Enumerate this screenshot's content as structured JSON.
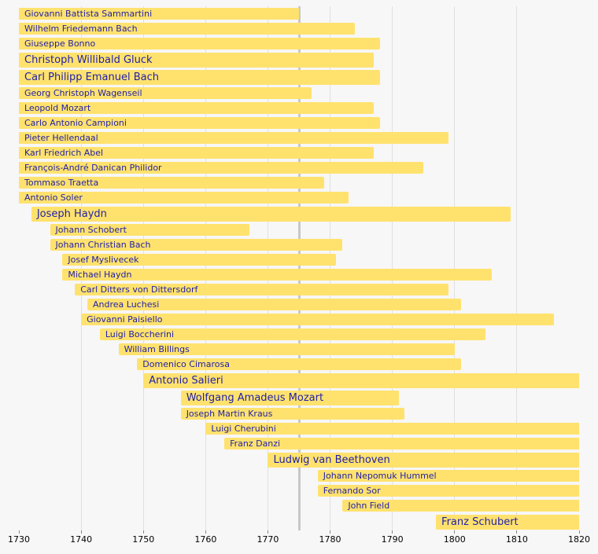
{
  "chart_data": {
    "type": "bar",
    "subtype": "horizontal-lifespan-timeline",
    "title": "",
    "x_axis": {
      "min": 1730,
      "max": 1820,
      "ticks": [
        1730,
        1740,
        1750,
        1760,
        1770,
        1780,
        1790,
        1800,
        1810,
        1820
      ]
    },
    "reference_line_year": 1775,
    "grid": true,
    "colors": {
      "background": "#f7f7f7",
      "bar": "#ffe26e",
      "label": "#1f1fa8",
      "grid": "#e0e0e0",
      "grid_major": "#c8c8c8",
      "axis_text": "#000000"
    },
    "composers": [
      {
        "name": "Giovanni Battista Sammartini",
        "start": 1730,
        "end": 1775,
        "clipped_start": true,
        "clipped_end": false,
        "emphasis": false
      },
      {
        "name": "Wilhelm Friedemann Bach",
        "start": 1730,
        "end": 1784,
        "clipped_start": true,
        "clipped_end": false,
        "emphasis": false
      },
      {
        "name": "Giuseppe Bonno",
        "start": 1730,
        "end": 1788,
        "clipped_start": true,
        "clipped_end": false,
        "emphasis": false
      },
      {
        "name": "Christoph Willibald Gluck",
        "start": 1730,
        "end": 1787,
        "clipped_start": true,
        "clipped_end": false,
        "emphasis": true
      },
      {
        "name": "Carl Philipp Emanuel Bach",
        "start": 1730,
        "end": 1788,
        "clipped_start": true,
        "clipped_end": false,
        "emphasis": true
      },
      {
        "name": "Georg Christoph Wagenseil",
        "start": 1730,
        "end": 1777,
        "clipped_start": true,
        "clipped_end": false,
        "emphasis": false
      },
      {
        "name": "Leopold Mozart",
        "start": 1730,
        "end": 1787,
        "clipped_start": true,
        "clipped_end": false,
        "emphasis": false
      },
      {
        "name": "Carlo Antonio Campioni",
        "start": 1730,
        "end": 1788,
        "clipped_start": true,
        "clipped_end": false,
        "emphasis": false
      },
      {
        "name": "Pieter Hellendaal",
        "start": 1730,
        "end": 1799,
        "clipped_start": true,
        "clipped_end": false,
        "emphasis": false
      },
      {
        "name": "Karl Friedrich Abel",
        "start": 1730,
        "end": 1787,
        "clipped_start": true,
        "clipped_end": false,
        "emphasis": false
      },
      {
        "name": "François-André Danican Philidor",
        "start": 1730,
        "end": 1795,
        "clipped_start": true,
        "clipped_end": false,
        "emphasis": false
      },
      {
        "name": "Tommaso Traetta",
        "start": 1730,
        "end": 1779,
        "clipped_start": true,
        "clipped_end": false,
        "emphasis": false
      },
      {
        "name": "Antonio Soler",
        "start": 1730,
        "end": 1783,
        "clipped_start": true,
        "clipped_end": false,
        "emphasis": false
      },
      {
        "name": "Joseph Haydn",
        "start": 1732,
        "end": 1809,
        "clipped_start": false,
        "clipped_end": false,
        "emphasis": true
      },
      {
        "name": "Johann Schobert",
        "start": 1735,
        "end": 1767,
        "clipped_start": false,
        "clipped_end": false,
        "emphasis": false
      },
      {
        "name": "Johann Christian Bach",
        "start": 1735,
        "end": 1782,
        "clipped_start": false,
        "clipped_end": false,
        "emphasis": false
      },
      {
        "name": "Josef Myslivecek",
        "start": 1737,
        "end": 1781,
        "clipped_start": false,
        "clipped_end": false,
        "emphasis": false
      },
      {
        "name": "Michael Haydn",
        "start": 1737,
        "end": 1806,
        "clipped_start": false,
        "clipped_end": false,
        "emphasis": false
      },
      {
        "name": "Carl Ditters von Dittersdorf",
        "start": 1739,
        "end": 1799,
        "clipped_start": false,
        "clipped_end": false,
        "emphasis": false
      },
      {
        "name": "Andrea Luchesi",
        "start": 1741,
        "end": 1801,
        "clipped_start": false,
        "clipped_end": false,
        "emphasis": false
      },
      {
        "name": "Giovanni Paisiello",
        "start": 1740,
        "end": 1816,
        "clipped_start": false,
        "clipped_end": false,
        "emphasis": false
      },
      {
        "name": "Luigi Boccherini",
        "start": 1743,
        "end": 1805,
        "clipped_start": false,
        "clipped_end": false,
        "emphasis": false
      },
      {
        "name": "William Billings",
        "start": 1746,
        "end": 1800,
        "clipped_start": false,
        "clipped_end": false,
        "emphasis": false
      },
      {
        "name": "Domenico Cimarosa",
        "start": 1749,
        "end": 1801,
        "clipped_start": false,
        "clipped_end": false,
        "emphasis": false
      },
      {
        "name": "Antonio Salieri",
        "start": 1750,
        "end": 1820,
        "clipped_start": false,
        "clipped_end": true,
        "emphasis": true
      },
      {
        "name": "Wolfgang Amadeus Mozart",
        "start": 1756,
        "end": 1791,
        "clipped_start": false,
        "clipped_end": false,
        "emphasis": true
      },
      {
        "name": "Joseph Martin Kraus",
        "start": 1756,
        "end": 1792,
        "clipped_start": false,
        "clipped_end": false,
        "emphasis": false
      },
      {
        "name": "Luigi Cherubini",
        "start": 1760,
        "end": 1820,
        "clipped_start": false,
        "clipped_end": true,
        "emphasis": false
      },
      {
        "name": "Franz Danzi",
        "start": 1763,
        "end": 1820,
        "clipped_start": false,
        "clipped_end": true,
        "emphasis": false
      },
      {
        "name": "Ludwig van Beethoven",
        "start": 1770,
        "end": 1820,
        "clipped_start": false,
        "clipped_end": true,
        "emphasis": true
      },
      {
        "name": "Johann Nepomuk Hummel",
        "start": 1778,
        "end": 1820,
        "clipped_start": false,
        "clipped_end": true,
        "emphasis": false
      },
      {
        "name": "Fernando Sor",
        "start": 1778,
        "end": 1820,
        "clipped_start": false,
        "clipped_end": true,
        "emphasis": false
      },
      {
        "name": "John Field",
        "start": 1782,
        "end": 1820,
        "clipped_start": false,
        "clipped_end": true,
        "emphasis": false
      },
      {
        "name": "Franz Schubert",
        "start": 1797,
        "end": 1820,
        "clipped_start": false,
        "clipped_end": true,
        "emphasis": true
      }
    ]
  }
}
